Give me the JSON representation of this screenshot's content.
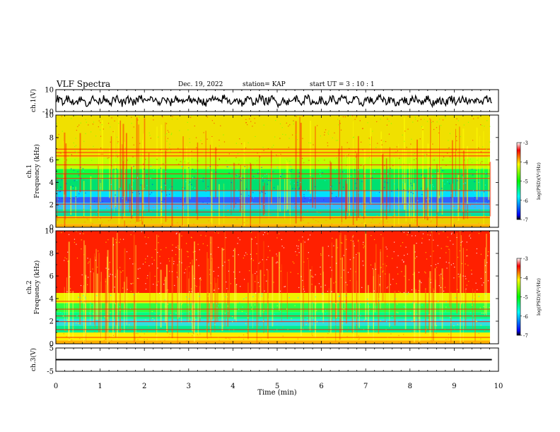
{
  "header": {
    "title": "VLF Spectra",
    "date": "Dec. 19, 2022",
    "station": "station= KAP",
    "start": "start  UT  =   3  : 10 : 1"
  },
  "chart_data": [
    {
      "type": "line",
      "panel": "ch1-waveform",
      "ylabel": "ch.1(V)",
      "ylim": [
        -10,
        10
      ],
      "yticks": [
        "10",
        "-10"
      ],
      "xlim": [
        0,
        10
      ]
    },
    {
      "type": "heatmap",
      "panel": "ch1-spectrogram",
      "ylabel": "ch.1 Frequency (kHz)",
      "ylim": [
        0,
        10
      ],
      "yticks": [
        "0",
        "2",
        "4",
        "6",
        "8",
        "10"
      ],
      "xlim": [
        0,
        10
      ],
      "colorbar": {
        "label": "log(PSD)(V²/Hz)",
        "range": [
          -7,
          -3
        ],
        "ticks": [
          "-3",
          "-4",
          "-5",
          "-6",
          "-7"
        ]
      }
    },
    {
      "type": "heatmap",
      "panel": "ch2-spectrogram",
      "ylabel": "ch.2 Frequency (kHz)",
      "ylim": [
        0,
        10
      ],
      "yticks": [
        "0",
        "2",
        "4",
        "6",
        "8",
        "10"
      ],
      "xlim": [
        0,
        10
      ],
      "colorbar": {
        "label": "log(PSD)(V²/Hz)",
        "range": [
          -7,
          -3
        ],
        "ticks": [
          "-3",
          "-4",
          "-5",
          "-6",
          "-7"
        ]
      }
    },
    {
      "type": "line",
      "panel": "ch3-waveform",
      "ylabel": "ch.3(V)",
      "ylim": [
        -5,
        5
      ],
      "yticks": [
        "5",
        "-5"
      ],
      "xlim": [
        0,
        10
      ],
      "xlabel": "Time (min)",
      "xticks": [
        "0",
        "1",
        "2",
        "3",
        "4",
        "5",
        "6",
        "7",
        "8",
        "9",
        "10"
      ]
    }
  ],
  "colors": {
    "waveform": "#000000",
    "axes": "#000000",
    "background": "#ffffff"
  }
}
